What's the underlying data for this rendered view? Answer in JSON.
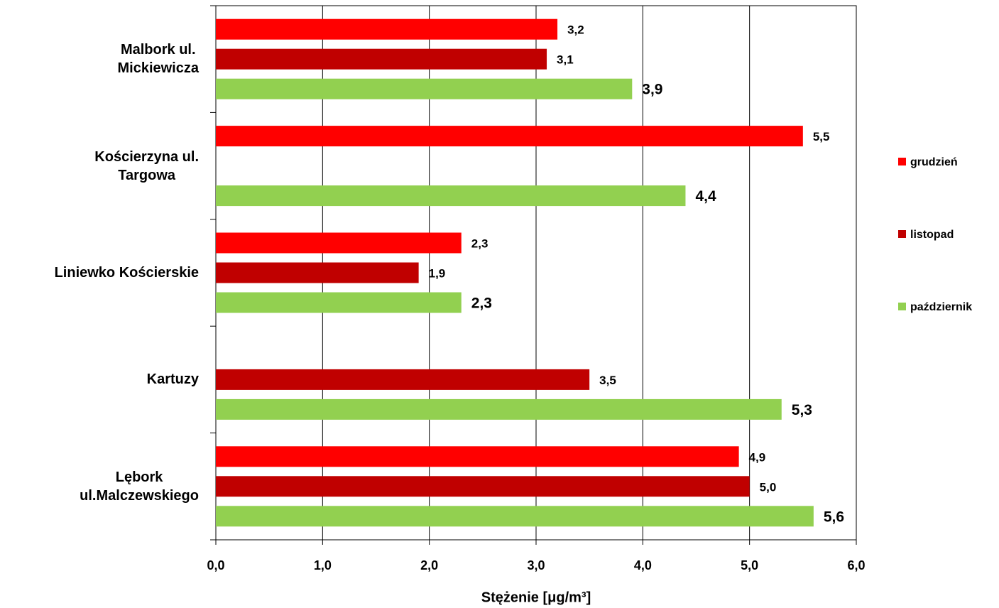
{
  "chart_data": {
    "type": "hbar",
    "categories": [
      "Malbork ul.\nMickiewicza",
      "Kościerzyna ul.\nTargowa",
      "Liniewko Kościerskie",
      "Kartuzy",
      "Lębork\nul.Malczewskiego"
    ],
    "series": [
      {
        "name": "grudzień",
        "color": "#ff0000",
        "values": [
          3.2,
          5.5,
          2.3,
          null,
          4.9
        ],
        "value_labels": [
          "3,2",
          "5,5",
          "2,3",
          null,
          "4,9"
        ]
      },
      {
        "name": "listopad",
        "color": "#c00000",
        "values": [
          3.1,
          null,
          1.9,
          3.5,
          5.0
        ],
        "value_labels": [
          "3,1",
          null,
          "1,9",
          "3,5",
          "5,0"
        ]
      },
      {
        "name": "październik",
        "color": "#92d050",
        "values": [
          3.9,
          4.4,
          2.3,
          5.3,
          5.6
        ],
        "value_labels": [
          "3,9",
          "4,4",
          "2,3",
          "5,3",
          "5,6"
        ]
      }
    ],
    "xlabel": "Stężenie [μg/m³]",
    "xlim": [
      0,
      6
    ],
    "xticks": [
      {
        "value": 0,
        "label": "0,0"
      },
      {
        "value": 1,
        "label": "1,0"
      },
      {
        "value": 2,
        "label": "2,0"
      },
      {
        "value": 3,
        "label": "3,0"
      },
      {
        "value": 4,
        "label": "4,0"
      },
      {
        "value": 5,
        "label": "5,0"
      },
      {
        "value": 6,
        "label": "6,0"
      }
    ],
    "grid": true,
    "legend": "right"
  }
}
